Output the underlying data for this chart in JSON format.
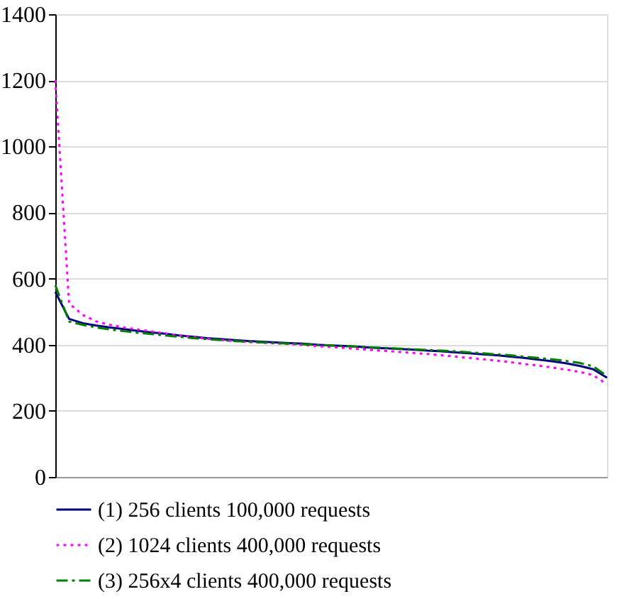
{
  "chart_data": {
    "type": "line",
    "categories": [
      null,
      null,
      null,
      null,
      null,
      null,
      null,
      null,
      null,
      null,
      null,
      null,
      null,
      null,
      null,
      null,
      null,
      null,
      null,
      null,
      null,
      null,
      null,
      null,
      null,
      null,
      null,
      null,
      null,
      null,
      null,
      null,
      null,
      null,
      null,
      null,
      null,
      null,
      null,
      null,
      null
    ],
    "series": [
      {
        "name": "(1) 256 clients 100,000 requests",
        "color": "#000080",
        "line_style": "solid",
        "values": [
          560,
          478,
          465,
          458,
          452,
          447,
          442,
          437,
          433,
          428,
          424,
          420,
          417,
          414,
          411,
          409,
          407,
          405,
          403,
          400,
          398,
          396,
          394,
          391,
          389,
          387,
          385,
          382,
          380,
          377,
          374,
          371,
          368,
          364,
          360,
          355,
          350,
          344,
          336,
          326,
          300
        ]
      },
      {
        "name": "(2) 1024 clients 400,000 requests",
        "color": "#ff00ff",
        "line_style": "dotted",
        "values": [
          1200,
          525,
          490,
          470,
          460,
          452,
          446,
          440,
          434,
          428,
          423,
          418,
          414,
          411,
          408,
          406,
          404,
          402,
          399,
          396,
          393,
          390,
          387,
          384,
          381,
          378,
          375,
          372,
          368,
          364,
          360,
          356,
          352,
          347,
          342,
          337,
          331,
          325,
          318,
          308,
          280
        ]
      },
      {
        "name": "(3) 256x4 clients 400,000 requests",
        "color": "#008000",
        "line_style": "dashed",
        "values": [
          580,
          470,
          460,
          452,
          446,
          441,
          436,
          432,
          428,
          424,
          420,
          417,
          414,
          411,
          409,
          407,
          405,
          403,
          401,
          399,
          398,
          396,
          394,
          392,
          390,
          388,
          386,
          384,
          382,
          380,
          377,
          374,
          371,
          368,
          364,
          360,
          356,
          351,
          345,
          335,
          305
        ]
      }
    ],
    "ylim": [
      0,
      1400
    ],
    "yticks": [
      0,
      200,
      400,
      600,
      800,
      1000,
      1200,
      1400
    ],
    "grid": "y",
    "legend": "bottom",
    "marker": "none",
    "tick_labels": "y"
  }
}
